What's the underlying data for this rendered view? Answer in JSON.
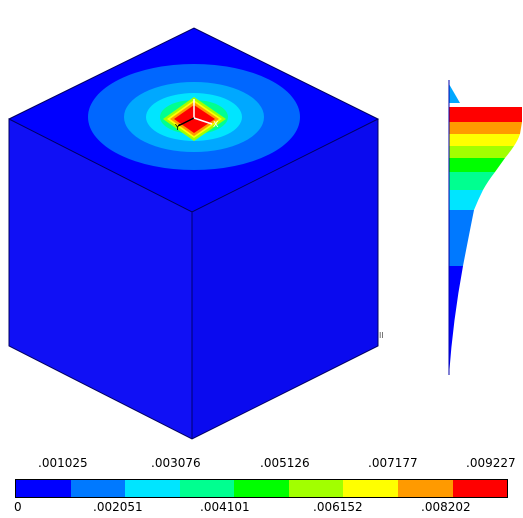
{
  "viewport": {
    "model": "contour-cube",
    "triad_labels": [
      "Y",
      "X"
    ],
    "marker_text": "II"
  },
  "legend": {
    "labels_top": [
      ".001025",
      ".003076",
      ".005126",
      ".007177",
      ".009227"
    ],
    "labels_bottom": [
      "0",
      ".002051",
      ".004101",
      ".006152",
      ".008202"
    ],
    "colors": [
      "#0000ff",
      "#0079ff",
      "#00e5ff",
      "#00ff90",
      "#00ff00",
      "#a2ff00",
      "#ffff00",
      "#ff9a00",
      "#ff0000"
    ]
  }
}
